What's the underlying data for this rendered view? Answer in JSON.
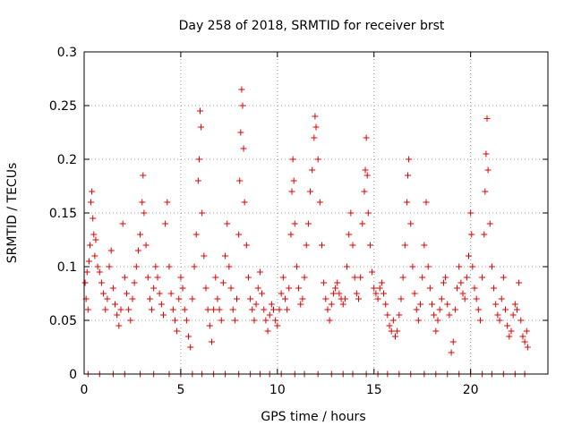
{
  "chart_data": {
    "type": "scatter",
    "title": "Day 258 of 2018, SRMTID for receiver brst",
    "xlabel": "GPS time / hours",
    "ylabel": "SRMTID / TECUs",
    "xlim": [
      0,
      24
    ],
    "ylim": [
      0,
      0.3
    ],
    "grid": true,
    "marker": "+",
    "color": "#e00000",
    "x_ticks": [
      0,
      5,
      10,
      15,
      20
    ],
    "x_tick_labels": [
      "0",
      "5",
      "10",
      "15",
      "20"
    ],
    "y_ticks": [
      0,
      0.05,
      0.1,
      0.15,
      0.2,
      0.25,
      0.3
    ],
    "y_tick_labels": [
      "0",
      "0.05",
      "0.1",
      "0.15",
      "0.2",
      "0.25",
      "0.3"
    ],
    "series": [
      {
        "name": "SRMTID",
        "points": [
          [
            0.05,
            0.085
          ],
          [
            0.1,
            0.07
          ],
          [
            0.15,
            0.095
          ],
          [
            0.2,
            0.06
          ],
          [
            0.25,
            0.105
          ],
          [
            0.3,
            0.12
          ],
          [
            0.35,
            0.16
          ],
          [
            0.4,
            0.17
          ],
          [
            0.45,
            0.145
          ],
          [
            0.5,
            0.13
          ],
          [
            0.55,
            0.11
          ],
          [
            0.6,
            0.125
          ],
          [
            0.7,
            0.1
          ],
          [
            0.8,
            0.095
          ],
          [
            0.9,
            0.085
          ],
          [
            1.0,
            0.075
          ],
          [
            1.1,
            0.06
          ],
          [
            1.2,
            0.07
          ],
          [
            1.3,
            0.1
          ],
          [
            1.4,
            0.115
          ],
          [
            1.5,
            0.08
          ],
          [
            1.6,
            0.065
          ],
          [
            1.7,
            0.055
          ],
          [
            1.8,
            0.045
          ],
          [
            1.9,
            0.06
          ],
          [
            2.0,
            0.14
          ],
          [
            2.1,
            0.09
          ],
          [
            2.2,
            0.075
          ],
          [
            2.3,
            0.06
          ],
          [
            2.4,
            0.05
          ],
          [
            2.5,
            0.07
          ],
          [
            2.6,
            0.085
          ],
          [
            2.7,
            0.1
          ],
          [
            2.8,
            0.115
          ],
          [
            2.9,
            0.13
          ],
          [
            3.0,
            0.16
          ],
          [
            3.05,
            0.185
          ],
          [
            3.1,
            0.15
          ],
          [
            3.2,
            0.12
          ],
          [
            3.3,
            0.09
          ],
          [
            3.4,
            0.07
          ],
          [
            3.5,
            0.06
          ],
          [
            3.6,
            0.08
          ],
          [
            3.7,
            0.1
          ],
          [
            3.8,
            0.09
          ],
          [
            3.9,
            0.075
          ],
          [
            4.0,
            0.065
          ],
          [
            4.1,
            0.055
          ],
          [
            4.2,
            0.14
          ],
          [
            4.3,
            0.16
          ],
          [
            4.4,
            0.1
          ],
          [
            4.5,
            0.075
          ],
          [
            4.6,
            0.06
          ],
          [
            4.7,
            0.05
          ],
          [
            4.8,
            0.04
          ],
          [
            4.9,
            0.07
          ],
          [
            5.0,
            0.09
          ],
          [
            5.1,
            0.08
          ],
          [
            5.2,
            0.06
          ],
          [
            5.3,
            0.05
          ],
          [
            5.4,
            0.035
          ],
          [
            5.5,
            0.025
          ],
          [
            5.6,
            0.07
          ],
          [
            5.7,
            0.1
          ],
          [
            5.8,
            0.13
          ],
          [
            5.9,
            0.18
          ],
          [
            5.95,
            0.2
          ],
          [
            6.0,
            0.245
          ],
          [
            6.05,
            0.23
          ],
          [
            6.1,
            0.15
          ],
          [
            6.2,
            0.11
          ],
          [
            6.3,
            0.08
          ],
          [
            6.4,
            0.06
          ],
          [
            6.5,
            0.045
          ],
          [
            6.6,
            0.03
          ],
          [
            6.7,
            0.06
          ],
          [
            6.8,
            0.09
          ],
          [
            6.9,
            0.07
          ],
          [
            7.0,
            0.06
          ],
          [
            7.1,
            0.05
          ],
          [
            7.2,
            0.085
          ],
          [
            7.3,
            0.11
          ],
          [
            7.4,
            0.14
          ],
          [
            7.5,
            0.1
          ],
          [
            7.6,
            0.08
          ],
          [
            7.7,
            0.06
          ],
          [
            7.8,
            0.05
          ],
          [
            7.9,
            0.07
          ],
          [
            8.0,
            0.13
          ],
          [
            8.05,
            0.18
          ],
          [
            8.1,
            0.225
          ],
          [
            8.15,
            0.265
          ],
          [
            8.2,
            0.25
          ],
          [
            8.25,
            0.21
          ],
          [
            8.3,
            0.16
          ],
          [
            8.4,
            0.12
          ],
          [
            8.5,
            0.09
          ],
          [
            8.6,
            0.07
          ],
          [
            8.7,
            0.06
          ],
          [
            8.8,
            0.05
          ],
          [
            8.9,
            0.065
          ],
          [
            9.0,
            0.08
          ],
          [
            9.1,
            0.095
          ],
          [
            9.2,
            0.075
          ],
          [
            9.3,
            0.06
          ],
          [
            9.4,
            0.05
          ],
          [
            9.5,
            0.04
          ],
          [
            9.6,
            0.055
          ],
          [
            9.7,
            0.065
          ],
          [
            9.8,
            0.06
          ],
          [
            9.9,
            0.05
          ],
          [
            10.0,
            0.045
          ],
          [
            10.1,
            0.06
          ],
          [
            10.2,
            0.075
          ],
          [
            10.3,
            0.09
          ],
          [
            10.4,
            0.07
          ],
          [
            10.5,
            0.06
          ],
          [
            10.6,
            0.08
          ],
          [
            10.7,
            0.13
          ],
          [
            10.75,
            0.17
          ],
          [
            10.8,
            0.2
          ],
          [
            10.85,
            0.18
          ],
          [
            10.9,
            0.14
          ],
          [
            11.0,
            0.1
          ],
          [
            11.1,
            0.08
          ],
          [
            11.2,
            0.065
          ],
          [
            11.3,
            0.07
          ],
          [
            11.4,
            0.09
          ],
          [
            11.5,
            0.12
          ],
          [
            11.6,
            0.14
          ],
          [
            11.7,
            0.17
          ],
          [
            11.8,
            0.19
          ],
          [
            11.9,
            0.22
          ],
          [
            11.95,
            0.24
          ],
          [
            12.0,
            0.23
          ],
          [
            12.1,
            0.2
          ],
          [
            12.2,
            0.16
          ],
          [
            12.3,
            0.12
          ],
          [
            12.4,
            0.085
          ],
          [
            12.5,
            0.07
          ],
          [
            12.6,
            0.06
          ],
          [
            12.7,
            0.05
          ],
          [
            12.8,
            0.065
          ],
          [
            12.9,
            0.075
          ],
          [
            13.0,
            0.08
          ],
          [
            13.1,
            0.085
          ],
          [
            13.2,
            0.075
          ],
          [
            13.3,
            0.07
          ],
          [
            13.4,
            0.065
          ],
          [
            13.5,
            0.07
          ],
          [
            13.6,
            0.1
          ],
          [
            13.7,
            0.13
          ],
          [
            13.8,
            0.15
          ],
          [
            13.9,
            0.12
          ],
          [
            14.0,
            0.09
          ],
          [
            14.1,
            0.075
          ],
          [
            14.2,
            0.07
          ],
          [
            14.3,
            0.09
          ],
          [
            14.4,
            0.14
          ],
          [
            14.5,
            0.17
          ],
          [
            14.55,
            0.19
          ],
          [
            14.6,
            0.22
          ],
          [
            14.65,
            0.185
          ],
          [
            14.7,
            0.15
          ],
          [
            14.8,
            0.12
          ],
          [
            14.9,
            0.095
          ],
          [
            15.0,
            0.08
          ],
          [
            15.1,
            0.075
          ],
          [
            15.2,
            0.07
          ],
          [
            15.3,
            0.08
          ],
          [
            15.4,
            0.085
          ],
          [
            15.5,
            0.075
          ],
          [
            15.6,
            0.065
          ],
          [
            15.7,
            0.055
          ],
          [
            15.8,
            0.045
          ],
          [
            15.9,
            0.04
          ],
          [
            16.0,
            0.05
          ],
          [
            16.1,
            0.035
          ],
          [
            16.2,
            0.04
          ],
          [
            16.3,
            0.055
          ],
          [
            16.4,
            0.07
          ],
          [
            16.5,
            0.09
          ],
          [
            16.6,
            0.12
          ],
          [
            16.7,
            0.16
          ],
          [
            16.75,
            0.185
          ],
          [
            16.8,
            0.2
          ],
          [
            16.9,
            0.14
          ],
          [
            17.0,
            0.1
          ],
          [
            17.1,
            0.075
          ],
          [
            17.2,
            0.06
          ],
          [
            17.3,
            0.05
          ],
          [
            17.4,
            0.065
          ],
          [
            17.5,
            0.09
          ],
          [
            17.6,
            0.12
          ],
          [
            17.7,
            0.16
          ],
          [
            17.8,
            0.1
          ],
          [
            17.9,
            0.08
          ],
          [
            18.0,
            0.065
          ],
          [
            18.1,
            0.055
          ],
          [
            18.2,
            0.04
          ],
          [
            18.3,
            0.05
          ],
          [
            18.4,
            0.06
          ],
          [
            18.5,
            0.07
          ],
          [
            18.6,
            0.085
          ],
          [
            18.7,
            0.09
          ],
          [
            18.8,
            0.065
          ],
          [
            18.9,
            0.055
          ],
          [
            19.0,
            0.02
          ],
          [
            19.1,
            0.03
          ],
          [
            19.2,
            0.06
          ],
          [
            19.3,
            0.08
          ],
          [
            19.4,
            0.1
          ],
          [
            19.5,
            0.085
          ],
          [
            19.6,
            0.075
          ],
          [
            19.7,
            0.07
          ],
          [
            19.8,
            0.09
          ],
          [
            19.9,
            0.11
          ],
          [
            20.0,
            0.15
          ],
          [
            20.05,
            0.13
          ],
          [
            20.1,
            0.1
          ],
          [
            20.2,
            0.08
          ],
          [
            20.3,
            0.07
          ],
          [
            20.4,
            0.06
          ],
          [
            20.5,
            0.05
          ],
          [
            20.6,
            0.09
          ],
          [
            20.7,
            0.13
          ],
          [
            20.75,
            0.17
          ],
          [
            20.8,
            0.205
          ],
          [
            20.85,
            0.238
          ],
          [
            20.9,
            0.19
          ],
          [
            21.0,
            0.14
          ],
          [
            21.1,
            0.1
          ],
          [
            21.2,
            0.08
          ],
          [
            21.3,
            0.065
          ],
          [
            21.4,
            0.055
          ],
          [
            21.5,
            0.05
          ],
          [
            21.6,
            0.07
          ],
          [
            21.7,
            0.09
          ],
          [
            21.8,
            0.06
          ],
          [
            21.9,
            0.045
          ],
          [
            22.0,
            0.035
          ],
          [
            22.1,
            0.04
          ],
          [
            22.2,
            0.055
          ],
          [
            22.3,
            0.065
          ],
          [
            22.4,
            0.06
          ],
          [
            22.5,
            0.085
          ],
          [
            22.6,
            0.05
          ],
          [
            22.7,
            0.035
          ],
          [
            22.8,
            0.03
          ],
          [
            22.9,
            0.04
          ],
          [
            22.95,
            0.025
          ]
        ],
        "zero_points_x": [
          0.2,
          0.8,
          1.5,
          2.1,
          2.9,
          3.6,
          4.4,
          5.0,
          5.6,
          6.1,
          6.7,
          7.3,
          8.0,
          8.6,
          9.1,
          9.6,
          10.2,
          10.9,
          11.4,
          12.1,
          12.8,
          13.4,
          13.9,
          14.6,
          15.2,
          15.7,
          16.3,
          16.9,
          17.6,
          18.2,
          18.8,
          19.4,
          20.0,
          20.6,
          21.1,
          21.7,
          22.3,
          22.8
        ]
      }
    ]
  }
}
